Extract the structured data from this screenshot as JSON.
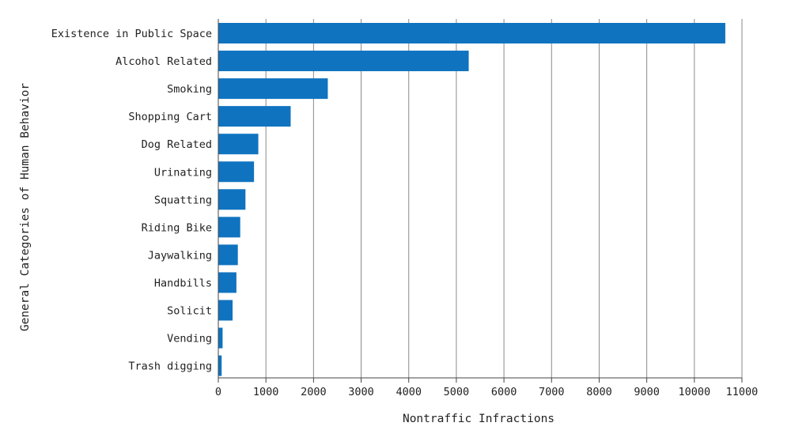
{
  "chart_data": {
    "type": "bar",
    "orientation": "horizontal",
    "title": "",
    "xlabel": "Nontraffic Infractions",
    "ylabel": "General Categories of Human Behavior",
    "xlim": [
      0,
      11000
    ],
    "xticks": [
      0,
      1000,
      2000,
      3000,
      4000,
      5000,
      6000,
      7000,
      8000,
      9000,
      10000,
      11000
    ],
    "grid": "vertical",
    "bar_color": "#0f73c0",
    "categories": [
      "Existence in Public Space",
      "Alcohol Related",
      "Smoking",
      "Shopping Cart",
      "Dog Related",
      "Urinating",
      "Squatting",
      "Riding Bike",
      "Jaywalking",
      "Handbills",
      "Solicit",
      "Vending",
      "Trash digging"
    ],
    "values": [
      10650,
      5260,
      2300,
      1520,
      840,
      750,
      570,
      460,
      410,
      380,
      300,
      90,
      70
    ]
  }
}
